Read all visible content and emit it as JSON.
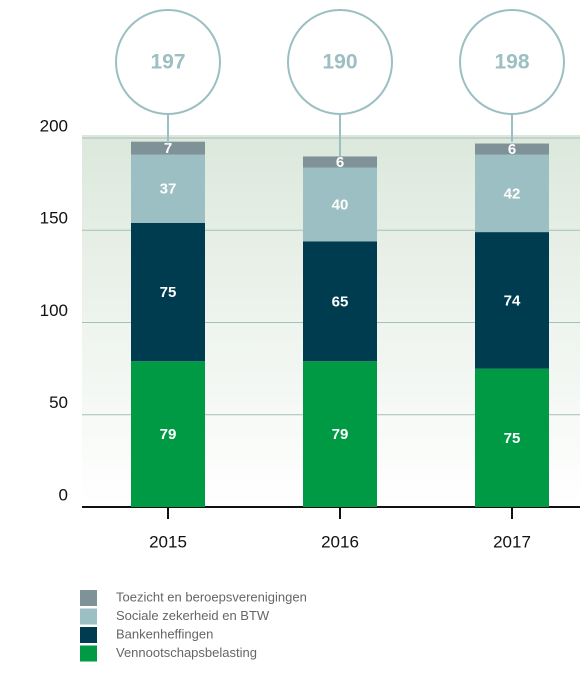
{
  "chart_data": {
    "type": "stacked_bar",
    "categories": [
      "2015",
      "2016",
      "2017"
    ],
    "series": [
      {
        "name": "Toezicht en beroepsverenigingen",
        "color": "#7f9297",
        "values": [
          7,
          6,
          6
        ]
      },
      {
        "name": "Sociale zekerheid en BTW",
        "color": "#9bbfc2",
        "values": [
          37,
          40,
          42
        ]
      },
      {
        "name": "Bankenheffingen",
        "color": "#003c50",
        "values": [
          75,
          65,
          74
        ]
      },
      {
        "name": "Vennootschapsbelasting",
        "color": "#009a44",
        "values": [
          79,
          79,
          75
        ]
      }
    ],
    "totals": [
      197,
      190,
      198
    ],
    "ylim": [
      0,
      200
    ],
    "yticks": [
      0,
      50,
      100,
      150,
      200
    ],
    "grid": true
  }
}
